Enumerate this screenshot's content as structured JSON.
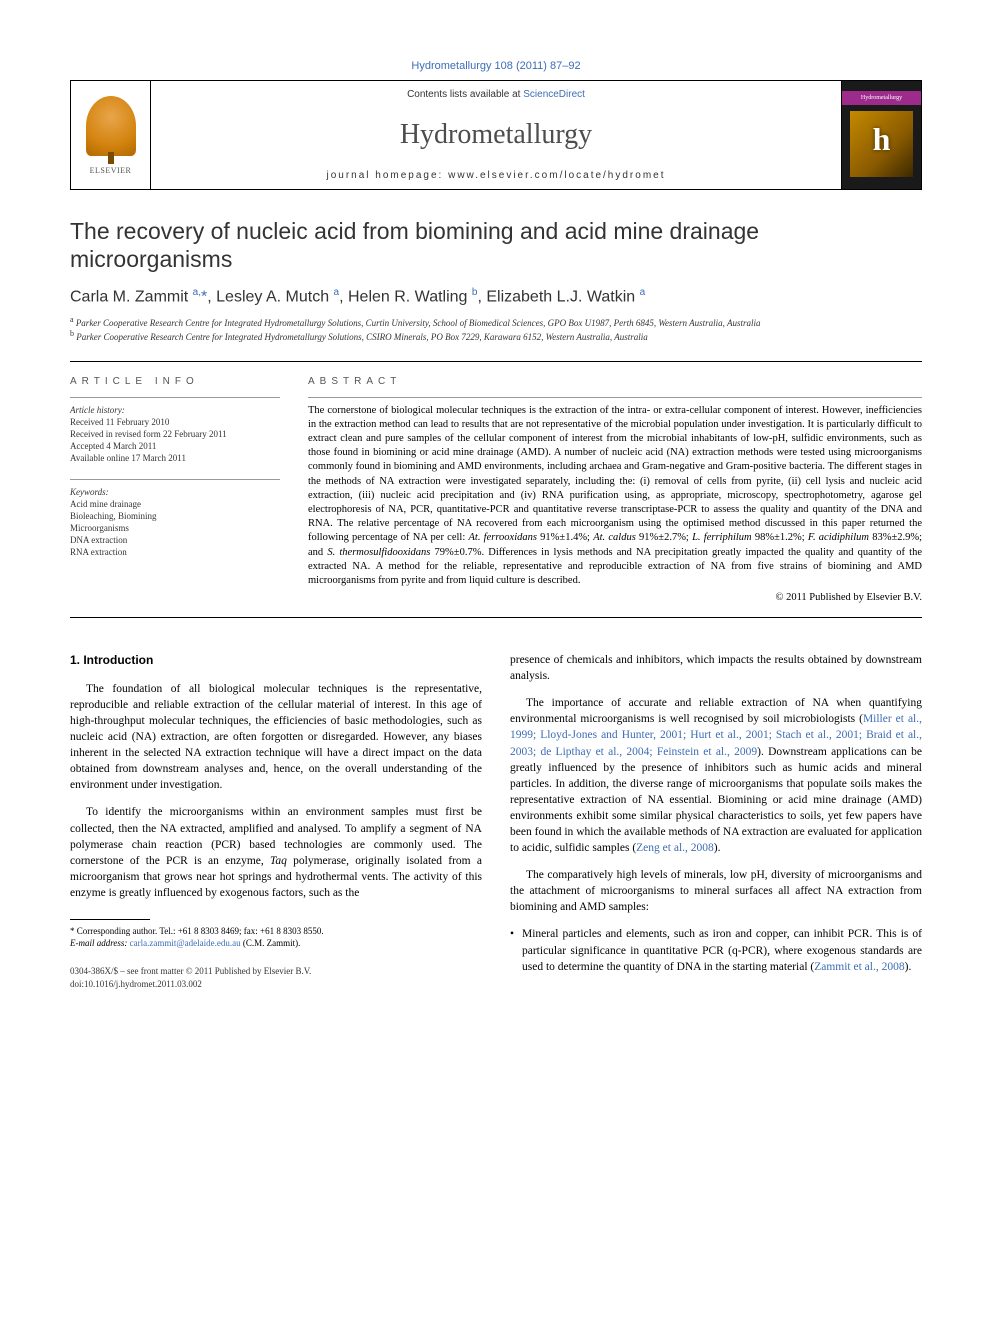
{
  "journal_ref_link": "Hydrometallurgy 108 (2011) 87–92",
  "header": {
    "contents_prefix": "Contents lists available at ",
    "contents_link": "ScienceDirect",
    "journal_title": "Hydrometallurgy",
    "homepage": "journal homepage: www.elsevier.com/locate/hydromet",
    "elsevier_label": "ELSEVIER",
    "cover_band": "Hydrometallurgy",
    "cover_letter": "h"
  },
  "article": {
    "title": "The recovery of nucleic acid from biomining and acid mine drainage microorganisms",
    "authors_html": "Carla M. Zammit <sup>a,</sup><span class='star'>*</span>, Lesley A. Mutch <sup>a</sup>, Helen R. Watling <sup>b</sup>, Elizabeth L.J. Watkin <sup>a</sup>",
    "affiliations": {
      "a": "Parker Cooperative Research Centre for Integrated Hydrometallurgy Solutions, Curtin University, School of Biomedical Sciences, GPO Box U1987, Perth 6845, Western Australia, Australia",
      "b": "Parker Cooperative Research Centre for Integrated Hydrometallurgy Solutions, CSIRO Minerals, PO Box 7229, Karawara 6152, Western Australia, Australia"
    }
  },
  "article_info": {
    "label": "ARTICLE INFO",
    "history_label": "Article history:",
    "received": "Received 11 February 2010",
    "revised": "Received in revised form 22 February 2011",
    "accepted": "Accepted 4 March 2011",
    "online": "Available online 17 March 2011",
    "keywords_label": "Keywords:",
    "keywords": [
      "Acid mine drainage",
      "Bioleaching, Biomining",
      "Microorganisms",
      "DNA extraction",
      "RNA extraction"
    ]
  },
  "abstract": {
    "label": "ABSTRACT",
    "text_html": "The cornerstone of biological molecular techniques is the extraction of the intra- or extra-cellular component of interest. However, inefficiencies in the extraction method can lead to results that are not representative of the microbial population under investigation. It is particularly difficult to extract clean and pure samples of the cellular component of interest from the microbial inhabitants of low-pH, sulfidic environments, such as those found in biomining or acid mine drainage (AMD). A number of nucleic acid (NA) extraction methods were tested using microorganisms commonly found in biomining and AMD environments, including archaea and Gram-negative and Gram-positive bacteria. The different stages in the methods of NA extraction were investigated separately, including the: (i) removal of cells from pyrite, (ii) cell lysis and nucleic acid extraction, (iii) nucleic acid precipitation and (iv) RNA purification using, as appropriate, microscopy, spectrophotometry, agarose gel electrophoresis of NA, PCR, quantitative-PCR and quantitative reverse transcriptase-PCR to assess the quality and quantity of the DNA and RNA. The relative percentage of NA recovered from each microorganism using the optimised method discussed in this paper returned the following percentage of NA per cell: <span class='it'>At. ferrooxidans</span> 91%±1.4%; <span class='it'>At. caldus</span> 91%±2.7%; <span class='it'>L. ferriphilum</span> 98%±1.2%; <span class='it'>F. acidiphilum</span> 83%±2.9%; and <span class='it'>S. thermosulfidooxidans</span> 79%±0.7%. Differences in lysis methods and NA precipitation greatly impacted the quality and quantity of the extracted NA. A method for the reliable, representative and reproducible extraction of NA from five strains of biomining and AMD microorganisms from pyrite and from liquid culture is described.",
    "copyright": "© 2011 Published by Elsevier B.V."
  },
  "body": {
    "section_heading": "1. Introduction",
    "left_paragraphs": [
      "The foundation of all biological molecular techniques is the representative, reproducible and reliable extraction of the cellular material of interest. In this age of high-throughput molecular techniques, the efficiencies of basic methodologies, such as nucleic acid (NA) extraction, are often forgotten or disregarded. However, any biases inherent in the selected NA extraction technique will have a direct impact on the data obtained from downstream analyses and, hence, on the overall understanding of the environment under investigation.",
      "To identify the microorganisms within an environment samples must first be collected, then the NA extracted, amplified and analysed. To amplify a segment of NA polymerase chain reaction (PCR) based technologies are commonly used. The cornerstone of the PCR is an enzyme, <span class='it'>Taq</span> polymerase, originally isolated from a microorganism that grows near hot springs and hydrothermal vents. The activity of this enzyme is greatly influenced by exogenous factors, such as the"
    ],
    "right_paragraphs": [
      "presence of chemicals and inhibitors, which impacts the results obtained by downstream analysis.",
      "The importance of accurate and reliable extraction of NA when quantifying environmental microorganisms is well recognised by soil microbiologists (<span class='ref-link'>Miller et al., 1999; Lloyd-Jones and Hunter, 2001; Hurt et al., 2001; Stach et al., 2001; Braid et al., 2003; de Lipthay et al., 2004; Feinstein et al., 2009</span>). Downstream applications can be greatly influenced by the presence of inhibitors such as humic acids and mineral particles. In addition, the diverse range of microorganisms that populate soils makes the representative extraction of NA essential. Biomining or acid mine drainage (AMD) environments exhibit some similar physical characteristics to soils, yet few papers have been found in which the available methods of NA extraction are evaluated for application to acidic, sulfidic samples (<span class='ref-link'>Zeng et al., 2008</span>).",
      "The comparatively high levels of minerals, low pH, diversity of microorganisms and the attachment of microorganisms to mineral surfaces all affect NA extraction from biomining and AMD samples:"
    ],
    "bullet": "Mineral particles and elements, such as iron and copper, can inhibit PCR. This is of particular significance in quantitative PCR (q-PCR), where exogenous standards are used to determine the quantity of DNA in the starting material (<span class='ref-link'>Zammit et al., 2008</span>)."
  },
  "footnote": {
    "corr_line": "* Corresponding author. Tel.: +61 8 8303 8469; fax: +61 8 8303 8550.",
    "email_label": "E-mail address:",
    "email": "carla.zammit@adelaide.edu.au",
    "email_suffix": "(C.M. Zammit)."
  },
  "bottom": {
    "front_matter": "0304-386X/$ – see front matter © 2011 Published by Elsevier B.V.",
    "doi": "doi:10.1016/j.hydromet.2011.03.002"
  },
  "colors": {
    "link": "#3d6db5",
    "text": "#000000",
    "muted": "#555555",
    "cover_band": "#9c2b8c"
  }
}
